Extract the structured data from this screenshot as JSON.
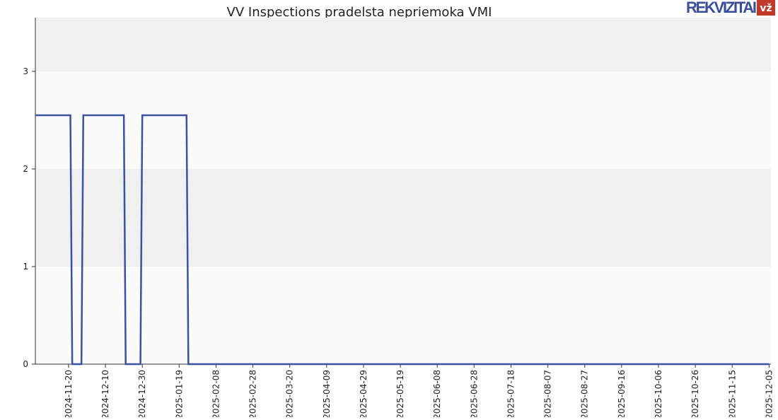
{
  "logo": {
    "text": "REKVIZITAI",
    "badge": "vž"
  },
  "chart_data": {
    "type": "line",
    "title": "VV Inspections pradelsta nepriemoka VMI",
    "x": [
      "2024-11-02",
      "2024-11-21",
      "2024-11-22",
      "2024-11-27",
      "2024-11-28",
      "2024-12-20",
      "2024-12-21",
      "2024-12-29",
      "2024-12-30",
      "2025-01-23",
      "2025-01-24",
      "2025-12-05"
    ],
    "series": [
      {
        "name": "VV Inspections",
        "color": "#3a52a0",
        "values": [
          2.55,
          2.55,
          0,
          0,
          2.55,
          2.55,
          0,
          0,
          2.55,
          2.55,
          0,
          0
        ]
      }
    ],
    "xlim": [
      "2024-11-02",
      "2025-12-06"
    ],
    "xticks": [
      "2024-11-20",
      "2024-12-10",
      "2024-12-30",
      "2025-01-19",
      "2025-02-08",
      "2025-02-28",
      "2025-03-20",
      "2025-04-09",
      "2025-04-29",
      "2025-05-19",
      "2025-06-08",
      "2025-06-28",
      "2025-07-18",
      "2025-08-07",
      "2025-08-27",
      "2025-09-16",
      "2025-10-06",
      "2025-10-26",
      "2025-11-15",
      "2025-12-05"
    ],
    "ylim": [
      0,
      3.55
    ],
    "yticks": [
      0,
      1,
      2,
      3
    ],
    "grid": true
  }
}
